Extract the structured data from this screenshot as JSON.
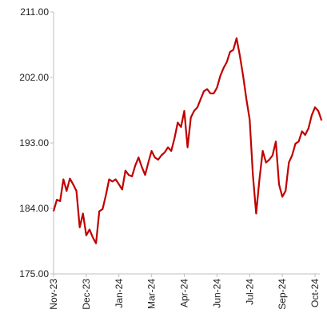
{
  "chart_data": {
    "type": "line",
    "categories": [
      "Nov-23",
      null,
      null,
      null,
      null,
      null,
      null,
      null,
      null,
      null,
      "Dec-23",
      null,
      null,
      null,
      null,
      null,
      null,
      null,
      null,
      null,
      "Jan-24",
      null,
      null,
      null,
      null,
      null,
      null,
      null,
      null,
      null,
      "Mar-24",
      null,
      null,
      null,
      null,
      null,
      null,
      null,
      null,
      null,
      "Apr-24",
      null,
      null,
      null,
      null,
      null,
      null,
      null,
      null,
      null,
      "Jun-24",
      null,
      null,
      null,
      null,
      null,
      null,
      null,
      null,
      null,
      "Jul-24",
      null,
      null,
      null,
      null,
      null,
      null,
      null,
      null,
      null,
      "Sep-24",
      null,
      null,
      null,
      null,
      null,
      null,
      null,
      null,
      null,
      "Oct-24",
      null,
      null
    ],
    "series": [
      {
        "color": "#c00000",
        "values": [
          183.6,
          185.2,
          185.0,
          188.0,
          186.4,
          188.1,
          187.3,
          186.4,
          181.4,
          183.3,
          180.3,
          181.1,
          180.0,
          179.2,
          183.6,
          183.9,
          185.8,
          188.0,
          187.7,
          188.0,
          187.3,
          186.6,
          189.2,
          188.6,
          188.4,
          189.9,
          191.0,
          189.7,
          188.6,
          190.3,
          191.9,
          191.0,
          190.7,
          191.3,
          191.7,
          192.4,
          191.9,
          193.6,
          195.8,
          195.2,
          197.4,
          192.4,
          196.5,
          197.4,
          197.9,
          199.0,
          200.1,
          200.4,
          199.8,
          199.8,
          200.6,
          202.2,
          203.3,
          204.1,
          205.5,
          205.8,
          207.4,
          205.0,
          202.2,
          199.0,
          196.2,
          188.6,
          183.3,
          188.0,
          191.9,
          190.3,
          190.7,
          191.3,
          193.2,
          187.3,
          185.6,
          186.4,
          190.3,
          191.3,
          192.9,
          193.2,
          194.6,
          194.1,
          195.0,
          196.8,
          197.9,
          197.4,
          196.1
        ]
      }
    ],
    "ylim": [
      175,
      211
    ],
    "yticks": [
      {
        "value": 175,
        "label": "175.00"
      },
      {
        "value": 184,
        "label": "184.00"
      },
      {
        "value": 193,
        "label": "193.00"
      },
      {
        "value": 202,
        "label": "202.00"
      },
      {
        "value": 211,
        "label": "211.00"
      }
    ]
  }
}
